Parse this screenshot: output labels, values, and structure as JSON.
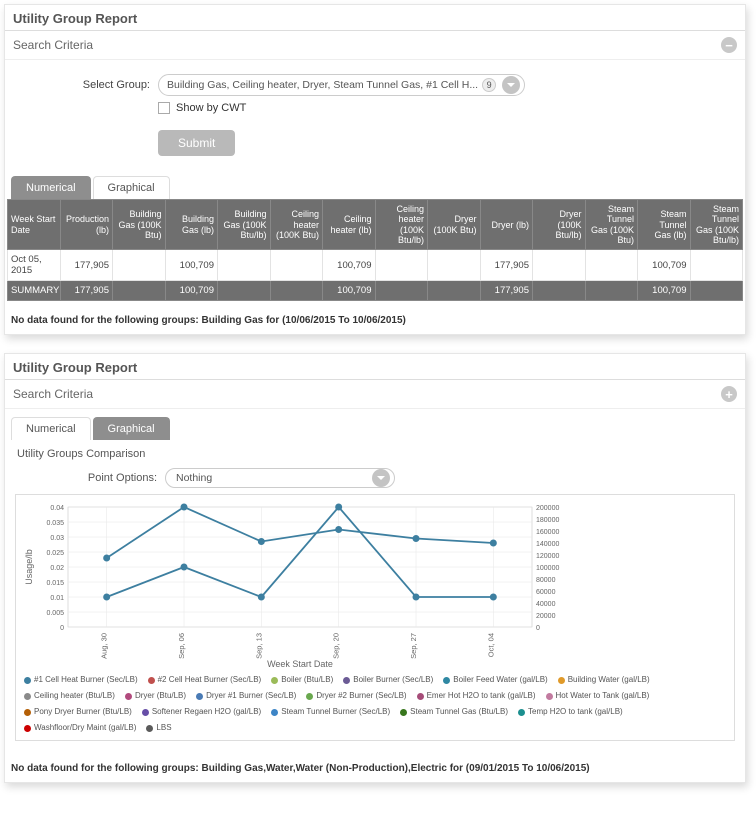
{
  "panel1": {
    "title": "Utility Group Report",
    "search_criteria": "Search Criteria",
    "select_group_label": "Select Group:",
    "select_group_value": "Building Gas, Ceiling heater, Dryer, Steam Tunnel Gas, #1 Cell H...",
    "select_group_count": "9",
    "show_by_cwt": "Show by CWT",
    "submit": "Submit",
    "tab_numerical": "Numerical",
    "tab_graphical": "Graphical",
    "columns": [
      "Week Start Date",
      "Production (lb)",
      "Building Gas (100K Btu)",
      "Building Gas (lb)",
      "Building Gas (100K Btu/lb)",
      "Ceiling heater (100K Btu)",
      "Ceiling heater (lb)",
      "Ceiling heater (100K Btu/lb)",
      "Dryer (100K Btu)",
      "Dryer (lb)",
      "Dryer (100K Btu/lb)",
      "Steam Tunnel Gas (100K Btu)",
      "Steam Tunnel Gas (lb)",
      "Steam Tunnel Gas (100K Btu/lb)"
    ],
    "row": {
      "date": "Oct 05, 2015",
      "production": "177,905",
      "bg_lb": "100,709",
      "ch_lb": "100,709",
      "dr_lb": "177,905",
      "st_lb": "100,709"
    },
    "summary": {
      "label": "SUMMARY",
      "production": "177,905",
      "bg_lb": "100,709",
      "ch_lb": "100,709",
      "dr_lb": "177,905",
      "st_lb": "100,709"
    },
    "no_data": "No data found for the following groups: Building Gas for (10/06/2015 To 10/06/2015)"
  },
  "panel2": {
    "title": "Utility Group Report",
    "search_criteria": "Search Criteria",
    "tab_numerical": "Numerical",
    "tab_graphical": "Graphical",
    "chart_title": "Utility Groups Comparison",
    "point_options_label": "Point Options:",
    "point_options_value": "Nothing",
    "no_data": "No data found for the following groups: Building Gas,Water,Water (Non-Production),Electric for (09/01/2015 To 10/06/2015)",
    "chart": {
      "type": "dual-axis-line",
      "y_left_label": "Usage/lb",
      "x_label": "Week Start Date",
      "x_ticks": [
        "Aug, 30",
        "Sep, 06",
        "Sep, 13",
        "Sep, 20",
        "Sep, 27",
        "Oct, 04"
      ],
      "y_left_ticks": [
        "0",
        "0.005",
        "0.01",
        "0.015",
        "0.02",
        "0.025",
        "0.03",
        "0.035",
        "0.04"
      ],
      "y_right_ticks": [
        "0",
        "20000",
        "40000",
        "60000",
        "80000",
        "100000",
        "120000",
        "140000",
        "160000",
        "180000",
        "200000"
      ],
      "line_color": "#3d7fa0",
      "point_color": "#3d7fa0",
      "grid_color": "#e6e6e6",
      "plot_bg": "#ffffff",
      "seriesA_values": [
        0.01,
        0.02,
        0.01,
        0.04,
        0.01,
        0.01
      ],
      "seriesB_left_equiv": [
        0.023,
        0.04,
        0.0285,
        0.0325,
        0.0295,
        0.028
      ]
    },
    "legend": [
      {
        "c": "#3d7fa0",
        "t": "#1 Cell Heat Burner (Sec/LB)"
      },
      {
        "c": "#c0504d",
        "t": "#2 Cell Heat Burner (Sec/LB)"
      },
      {
        "c": "#9bbb59",
        "t": "Boiler (Btu/LB)"
      },
      {
        "c": "#6b5b95",
        "t": "Boiler Burner (Sec/LB)"
      },
      {
        "c": "#2f88a3",
        "t": "Boiler Feed Water (gal/LB)"
      },
      {
        "c": "#e09a2a",
        "t": "Building Water (gal/LB)"
      },
      {
        "c": "#8a8a8a",
        "t": "Ceiling heater (Btu/LB)"
      },
      {
        "c": "#b14a7d",
        "t": "Dryer (Btu/LB)"
      },
      {
        "c": "#4a7bb5",
        "t": "Dryer #1 Burner (Sec/LB)"
      },
      {
        "c": "#6aa84f",
        "t": "Dryer #2 Burner (Sec/LB)"
      },
      {
        "c": "#a64d79",
        "t": "Emer Hot H2O to tank (gal/LB)"
      },
      {
        "c": "#c27ba0",
        "t": "Hot Water to Tank (gal/LB)"
      },
      {
        "c": "#b45f06",
        "t": "Pony Dryer Burner (Btu/LB)"
      },
      {
        "c": "#674ea7",
        "t": "Softener Regaen H2O (gal/LB)"
      },
      {
        "c": "#3d85c6",
        "t": "Steam Tunnel Burner (Sec/LB)"
      },
      {
        "c": "#38761d",
        "t": "Steam Tunnel Gas (Btu/LB)"
      },
      {
        "c": "#1c8f8f",
        "t": "Temp H2O to tank (gal/LB)"
      },
      {
        "c": "#cc0000",
        "t": "Washfloor/Dry Maint (gal/LB)"
      },
      {
        "c": "#5b5b5b",
        "t": "LBS"
      }
    ]
  }
}
